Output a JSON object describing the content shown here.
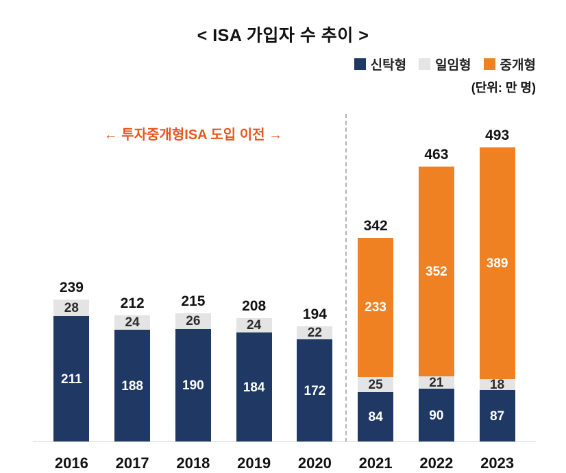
{
  "title": "< ISA 가입자 수 추이 >",
  "unit_label": "(단위: 만 명)",
  "annotation": "← 투자중개형ISA 도입 이전 →",
  "annotation_color": "#e8551c",
  "legend": {
    "items": [
      {
        "key": "trust",
        "label": "신탁형",
        "color": "#1f3864"
      },
      {
        "key": "discretionary",
        "label": "일임형",
        "color": "#e4e4e4"
      },
      {
        "key": "brokerage",
        "label": "중개형",
        "color": "#ef8122"
      }
    ]
  },
  "chart_data": {
    "type": "bar",
    "stacked": true,
    "title": "< ISA 가입자 수 추이 >",
    "unit": "만 명",
    "categories": [
      "2016",
      "2017",
      "2018",
      "2019",
      "2020",
      "2021",
      "2022",
      "2023"
    ],
    "series": [
      {
        "name": "신탁형",
        "key": "trust",
        "color": "#1f3864",
        "label_color": "#ffffff",
        "values": [
          211,
          188,
          190,
          184,
          172,
          84,
          90,
          87
        ]
      },
      {
        "name": "일임형",
        "key": "discretionary",
        "color": "#e4e4e4",
        "label_color": "#2b2b2b",
        "values": [
          28,
          24,
          26,
          24,
          22,
          25,
          21,
          18
        ]
      },
      {
        "name": "중개형",
        "key": "brokerage",
        "color": "#ef8122",
        "label_color": "#ffffff",
        "values": [
          0,
          0,
          0,
          0,
          0,
          233,
          352,
          389
        ]
      }
    ],
    "totals": [
      239,
      212,
      215,
      208,
      194,
      342,
      463,
      493
    ],
    "ylim": [
      0,
      520
    ],
    "grid": false,
    "legend_position": "top-right",
    "divider_after_category": "2020",
    "divider_style": "dashed-vertical-line"
  }
}
